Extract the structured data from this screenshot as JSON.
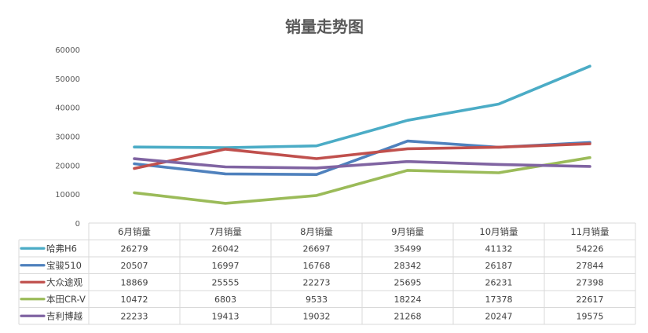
{
  "chart_data": {
    "type": "table",
    "title": "销量走势图",
    "categories": [
      "6月销量",
      "7月销量",
      "8月销量",
      "9月销量",
      "10月销量",
      "11月销量"
    ],
    "y_ticks": [
      0,
      10000,
      20000,
      30000,
      40000,
      50000,
      60000
    ],
    "ylim": [
      0,
      60000
    ],
    "grid": false,
    "legend": "data-table",
    "series": [
      {
        "name": "哈弗H6",
        "color": "#4bacc6",
        "values": [
          26279,
          26042,
          26697,
          35499,
          41132,
          54226
        ],
        "labels": [
          "26279",
          "26042",
          "26697",
          "35499",
          "41132",
          "54226"
        ]
      },
      {
        "name": "宝骏510",
        "color": "#4f81bd",
        "values": [
          20507,
          16997,
          16768,
          28342,
          26187,
          27844
        ],
        "labels": [
          "20507",
          "16997",
          "16768",
          "28342",
          "26187",
          "27844"
        ]
      },
      {
        "name": "大众途观",
        "color": "#c0504d",
        "values": [
          18869,
          25555,
          22273,
          25695,
          26231,
          27398
        ],
        "labels": [
          "18869",
          "25555",
          "22273",
          "25695",
          "26231",
          "27398"
        ]
      },
      {
        "name": "本田CR-V",
        "color": "#9bbb59",
        "values": [
          10472,
          6803,
          9533,
          18224,
          17378,
          22617
        ],
        "labels": [
          "10472",
          "6803",
          "9533",
          "18224",
          "17378",
          "22617"
        ]
      },
      {
        "name": "吉利博越",
        "color": "#8064a2",
        "values": [
          22233,
          19413,
          19032,
          21268,
          20247,
          19575
        ],
        "labels": [
          "22233",
          "19413",
          "19032",
          "21268",
          "20247",
          "19575"
        ]
      }
    ]
  }
}
